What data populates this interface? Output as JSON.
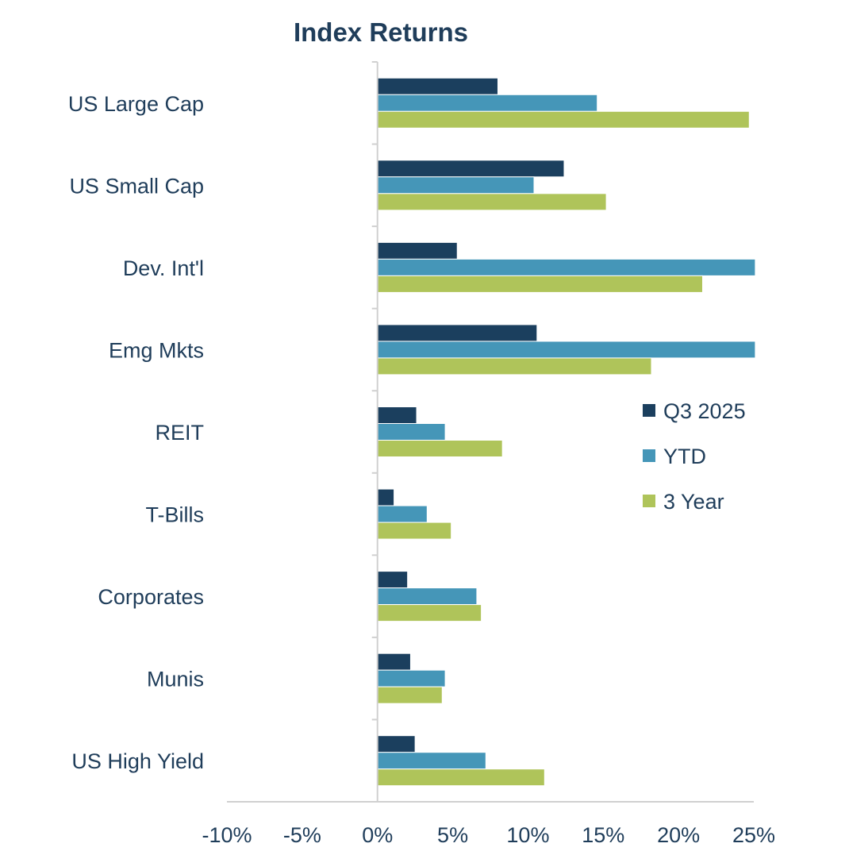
{
  "chart_data": {
    "type": "bar",
    "orientation": "horizontal",
    "title": "Index Returns",
    "categories": [
      "US Large Cap",
      "US Small Cap",
      "Dev. Int'l",
      "Emg Mkts",
      "REIT",
      "T-Bills",
      "Corporates",
      "Munis",
      "US High Yield"
    ],
    "series": [
      {
        "name": "Q3 2025",
        "color": "#1b3f5e",
        "values": [
          8.0,
          12.4,
          5.3,
          10.6,
          2.6,
          1.1,
          2.0,
          2.2,
          2.5
        ]
      },
      {
        "name": "YTD",
        "color": "#4596b8",
        "values": [
          14.6,
          10.4,
          25.1,
          25.1,
          4.5,
          3.3,
          6.6,
          4.5,
          7.2
        ]
      },
      {
        "name": "3 Year",
        "color": "#afc45a",
        "values": [
          24.7,
          15.2,
          21.6,
          18.2,
          8.3,
          4.9,
          6.9,
          4.3,
          11.1
        ]
      }
    ],
    "xlim": [
      -10,
      25
    ],
    "x_ticks": [
      -10,
      -5,
      0,
      5,
      10,
      15,
      20,
      25
    ],
    "x_tick_labels": [
      "-10%",
      "-5%",
      "0%",
      "5%",
      "10%",
      "15%",
      "20%",
      "25%"
    ],
    "xlabel": "",
    "ylabel": "",
    "grid": false,
    "legend_position": "right"
  }
}
